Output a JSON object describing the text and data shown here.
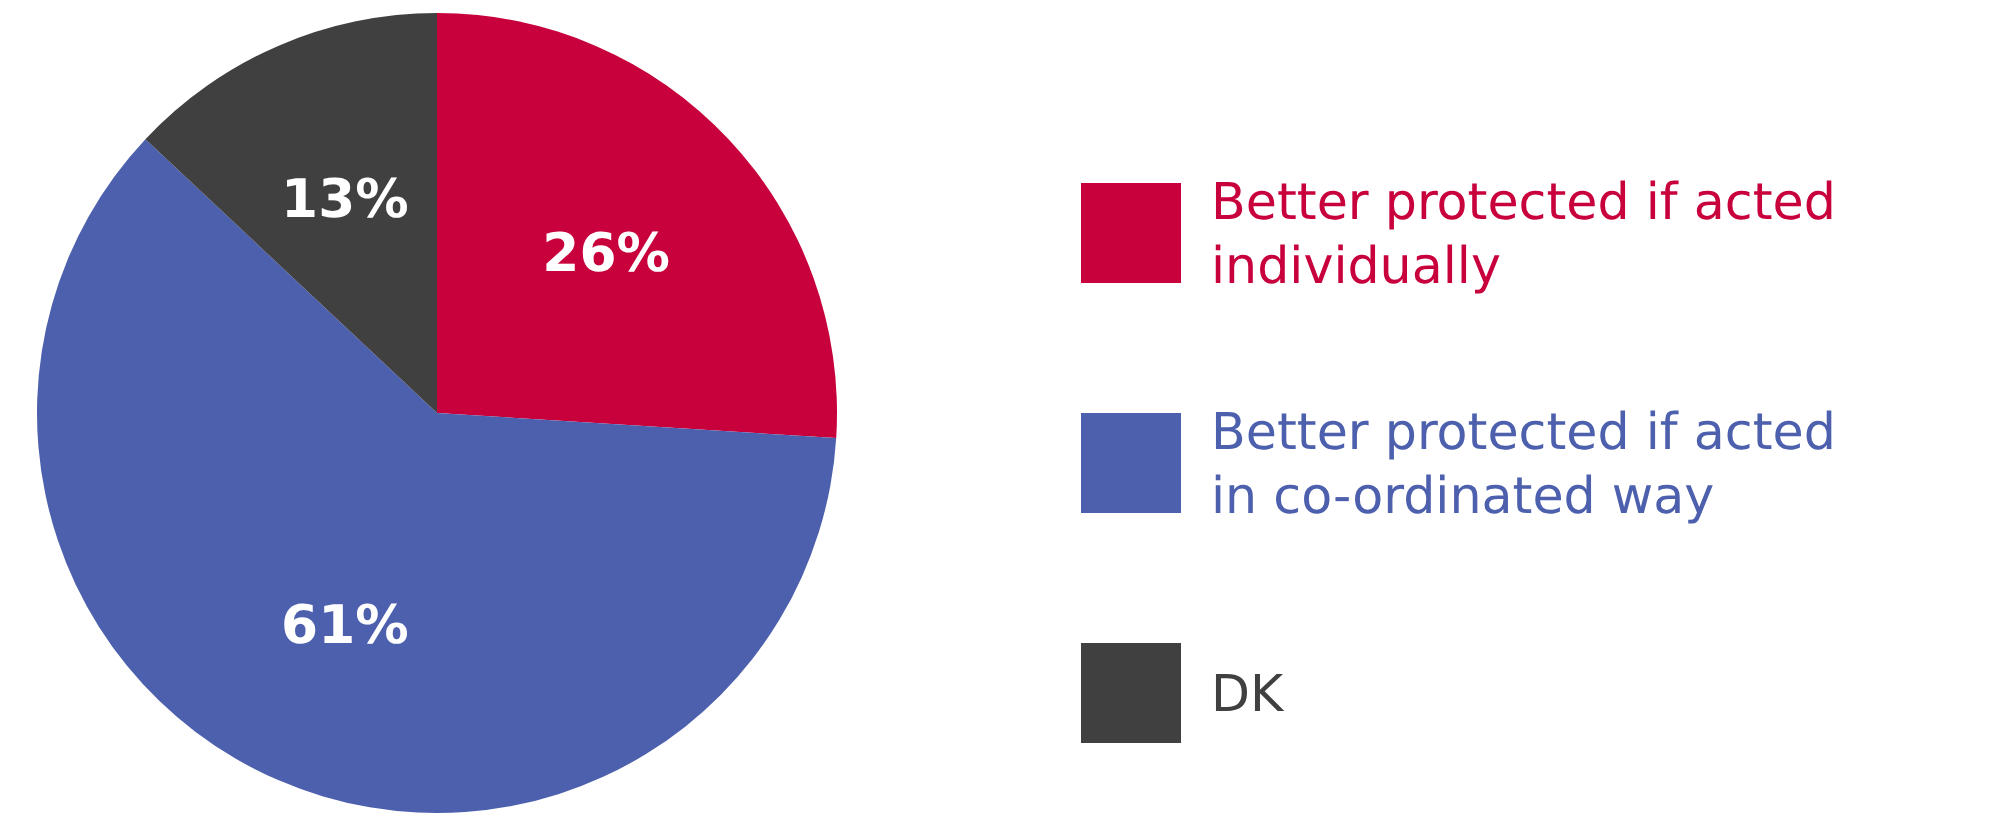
{
  "chart_data": {
    "type": "pie",
    "categories": [
      "Better protected if acted individually",
      "Better protected if acted in co-ordinated way",
      "DK"
    ],
    "values": [
      26,
      61,
      13
    ],
    "colors": [
      "#c8003c",
      "#4d60ad",
      "#404040"
    ],
    "value_labels": [
      "26%",
      "61%",
      "13%"
    ],
    "legend": "right"
  }
}
